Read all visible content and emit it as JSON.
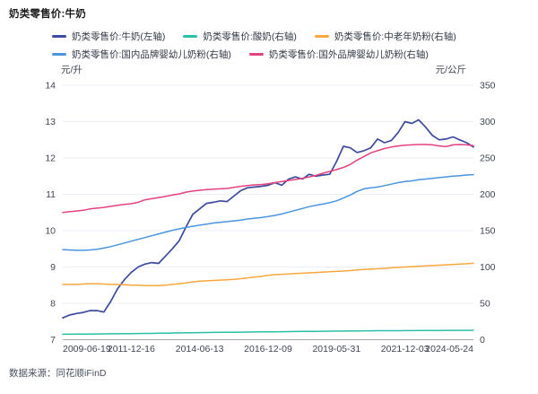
{
  "title": "奶类零售价:牛奶",
  "source": "数据来源：同花顺iFinD",
  "colors": {
    "milk_navy": "#3c4b9e",
    "yogurt_teal": "#29bfa9",
    "elder_powder_orange": "#f7a73e",
    "domestic_infant_blue": "#4a94e0",
    "foreign_infant_pink": "#e4417f",
    "grid": "#eceef5",
    "axis_line": "#a3a7b0",
    "tick_text": "#3f4554"
  },
  "chart_data": {
    "type": "line",
    "title": "奶类零售价:牛奶",
    "legend_position": "top",
    "grid": true,
    "x_tick_labels": [
      "2009-06-19",
      "2011-12-16",
      "2014-06-13",
      "2016-12-09",
      "2019-05-31",
      "2021-12-03",
      "2024-05-24"
    ],
    "x_range_note": "weekly data 2009-06-19 to 2024-05-24, series sampled quarterly (61 points)",
    "left_axis": {
      "unit": "元/升",
      "min": 7,
      "max": 14,
      "ticks": [
        14,
        13,
        12,
        11,
        10,
        9,
        8,
        7
      ]
    },
    "right_axis": {
      "unit": "元/公斤",
      "min": 0,
      "max": 350,
      "ticks": [
        350,
        300,
        250,
        200,
        150,
        100,
        50,
        0
      ]
    },
    "series": [
      {
        "name": "奶类零售价:牛奶(左轴)",
        "axis": "left",
        "color": "#3c4b9e",
        "width": 1.7,
        "values": [
          7.6,
          7.68,
          7.72,
          7.75,
          7.8,
          7.8,
          7.76,
          8.05,
          8.4,
          8.65,
          8.85,
          9.0,
          9.08,
          9.12,
          9.1,
          9.3,
          9.5,
          9.72,
          10.1,
          10.45,
          10.6,
          10.75,
          10.78,
          10.82,
          10.8,
          10.95,
          11.1,
          11.18,
          11.2,
          11.22,
          11.25,
          11.32,
          11.25,
          11.42,
          11.48,
          11.42,
          11.55,
          11.5,
          11.53,
          11.55,
          11.9,
          12.32,
          12.28,
          12.15,
          12.2,
          12.28,
          12.52,
          12.42,
          12.48,
          12.7,
          13.0,
          12.95,
          13.05,
          12.85,
          12.62,
          12.5,
          12.52,
          12.58,
          12.5,
          12.42,
          12.3
        ]
      },
      {
        "name": "奶类零售价:酸奶(右轴)",
        "axis": "right",
        "color": "#29bfa9",
        "width": 1.5,
        "values": [
          7.5,
          7.5,
          7.6,
          7.7,
          7.8,
          7.9,
          8,
          8.1,
          8.2,
          8.3,
          8.4,
          8.5,
          8.6,
          8.7,
          8.9,
          9,
          9.2,
          9.3,
          9.5,
          9.6,
          9.8,
          9.9,
          10,
          10.1,
          10.2,
          10.3,
          10.4,
          10.5,
          10.6,
          10.7,
          10.8,
          10.9,
          11,
          11.1,
          11.2,
          11.3,
          11.4,
          11.5,
          11.6,
          11.7,
          11.8,
          11.9,
          12,
          12.1,
          12.2,
          12.2,
          12.3,
          12.3,
          12.4,
          12.4,
          12.5,
          12.5,
          12.6,
          12.6,
          12.7,
          12.7,
          12.8,
          12.8,
          12.9,
          12.9,
          13
        ]
      },
      {
        "name": "奶类零售价:中老年奶粉(右轴)",
        "axis": "right",
        "color": "#f7a73e",
        "width": 1.5,
        "values": [
          76,
          76,
          76,
          76.5,
          77,
          77,
          76.5,
          76,
          76,
          75.5,
          75,
          75,
          74.5,
          74.5,
          74.5,
          75,
          76,
          77,
          78,
          79.5,
          80.5,
          81,
          81.5,
          82,
          82.5,
          83,
          84,
          85,
          86,
          87,
          88.5,
          89.5,
          90,
          90.5,
          91,
          91.5,
          92,
          92.5,
          93,
          93.5,
          94,
          94.5,
          95,
          96,
          96.5,
          97,
          97.5,
          98,
          99,
          99.5,
          100,
          100.5,
          101,
          101.5,
          102,
          102.5,
          103,
          103.5,
          104,
          104.5,
          105
        ]
      },
      {
        "name": "奶类零售价:国内品牌婴幼儿奶粉(右轴)",
        "axis": "right",
        "color": "#4a94e0",
        "width": 1.5,
        "values": [
          124,
          123.5,
          123,
          123,
          123.5,
          124.5,
          126,
          128,
          130.5,
          133,
          135.5,
          138,
          140.5,
          143,
          145.5,
          148,
          150.5,
          152.5,
          154.5,
          156,
          157.5,
          159,
          160.5,
          161.5,
          162.5,
          163.5,
          164.5,
          166,
          167,
          168,
          169.5,
          171,
          173,
          175.5,
          178,
          180.5,
          183,
          185,
          186.5,
          188.5,
          191,
          195,
          199,
          204,
          207.5,
          209,
          210,
          212,
          214,
          216,
          217.5,
          218.5,
          220,
          221,
          222,
          223,
          224,
          225,
          225.5,
          226.5,
          227
        ]
      },
      {
        "name": "奶类零售价:国外品牌婴幼儿奶粉(右轴)",
        "axis": "right",
        "color": "#e4417f",
        "width": 1.5,
        "values": [
          175,
          176,
          177,
          178,
          180,
          181,
          182,
          183.5,
          185,
          186,
          187,
          189,
          192.5,
          194,
          195.5,
          197,
          199,
          200.5,
          203,
          204.5,
          205.5,
          206.5,
          207,
          207.5,
          208,
          209.5,
          211,
          212,
          213,
          213.5,
          214.5,
          216,
          217.5,
          219,
          220.5,
          222,
          224,
          226,
          229,
          231.5,
          234,
          237,
          241,
          247,
          252,
          257,
          260,
          263,
          265,
          266.5,
          267.5,
          268,
          268.5,
          268.5,
          268,
          266.5,
          265.5,
          268,
          268.5,
          268,
          267
        ]
      }
    ]
  }
}
